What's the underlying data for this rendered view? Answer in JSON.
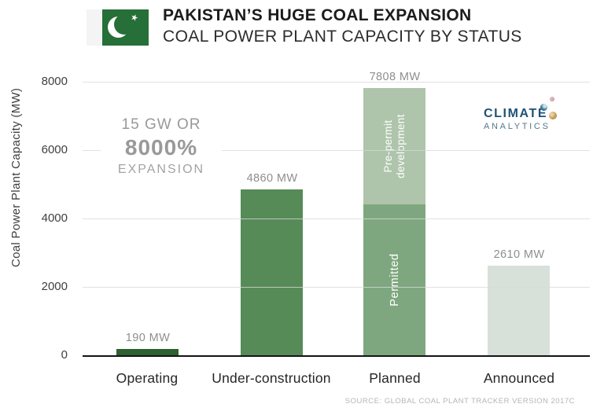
{
  "header": {
    "title": "PAKISTAN’S HUGE COAL EXPANSION",
    "subtitle": "COAL POWER PLANT CAPACITY BY STATUS"
  },
  "icons": {
    "flag": "pakistan-flag",
    "star_glyph": "★"
  },
  "logo": {
    "name": "Climate Analytics",
    "line1": "CLIMATE",
    "line2": "ANALYTICS"
  },
  "annotation": {
    "line1": "15 GW OR",
    "line2": "8000%",
    "line3": "EXPANSION"
  },
  "source": "SOURCE: GLOBAL COAL PLANT TRACKER VERSION 2017C",
  "colors": {
    "flag_green": "#266f38",
    "title_dark": "#1c1c1e",
    "subtitle_dark": "#2c2c2e",
    "axis_text": "#3f3f3f",
    "axis_line": "#141414",
    "grid_gray": "#d9d9d9",
    "bar_operating": "#2d6230",
    "bar_under_construction": "#568b58",
    "bar_permitted": "#7fa77f",
    "bar_pre_permit": "#aec5ab",
    "bar_announced": "#d8e1d9",
    "value_gray": "#8e8e8e",
    "cat_dark": "#262626",
    "anno_gray": "#999999",
    "anno_gray2": "#a3a3a3",
    "logo_blue": "#1f5276",
    "logo_gray_blue": "#54788c",
    "sphere_pink": "#c08a94",
    "sphere_blue": "#2d6f92",
    "sphere_gold": "#c09048",
    "source_gray": "#b5b5b5"
  },
  "chart_data": {
    "type": "bar",
    "title": "PAKISTAN’S HUGE COAL EXPANSION — COAL POWER PLANT CAPACITY BY STATUS",
    "ylabel": "Coal Power Plant Capacity (MW)",
    "ylim": [
      0,
      8000
    ],
    "yticks": [
      0,
      2000,
      4000,
      6000,
      8000
    ],
    "grid": true,
    "legend": "none",
    "categories": [
      "Operating",
      "Under-construction",
      "Planned",
      "Announced"
    ],
    "values": [
      190,
      4860,
      7808,
      2610
    ],
    "value_labels": [
      "190 MW",
      "4860 MW",
      "7808 MW",
      "2610 MW"
    ],
    "planned_segments": [
      {
        "label": "Permitted",
        "value": 4420
      },
      {
        "label": "Pre-permit development",
        "label_lines": [
          "Pre-permit",
          "development"
        ],
        "value": 3388
      }
    ],
    "annotation_text": "15 GW OR 8000% EXPANSION"
  }
}
